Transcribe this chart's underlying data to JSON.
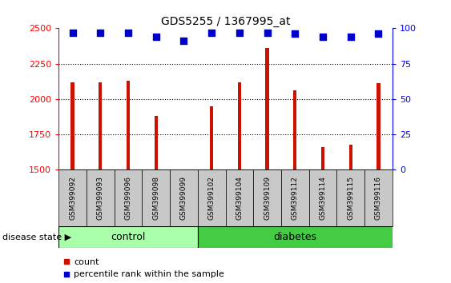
{
  "title": "GDS5255 / 1367995_at",
  "categories": [
    "GSM399092",
    "GSM399093",
    "GSM399096",
    "GSM399098",
    "GSM399099",
    "GSM399102",
    "GSM399104",
    "GSM399109",
    "GSM399112",
    "GSM399114",
    "GSM399115",
    "GSM399116"
  ],
  "bar_values": [
    2120,
    2118,
    2130,
    1880,
    1502,
    1950,
    2118,
    2360,
    2060,
    1660,
    1680,
    2115
  ],
  "percentile_values": [
    97,
    97,
    97,
    94,
    91,
    97,
    97,
    97,
    96,
    94,
    94,
    96
  ],
  "bar_color": "#CC1100",
  "dot_color": "#0000CC",
  "ylim_left": [
    1500,
    2500
  ],
  "ylim_right": [
    0,
    100
  ],
  "yticks_left": [
    1500,
    1750,
    2000,
    2250,
    2500
  ],
  "yticks_right": [
    0,
    25,
    50,
    75,
    100
  ],
  "group_labels": [
    "control",
    "diabetes"
  ],
  "ctrl_count": 5,
  "diab_count": 7,
  "control_color": "#AAFFAA",
  "diabetes_color": "#44CC44",
  "disease_state_label": "disease state",
  "legend_items": [
    "count",
    "percentile rank within the sample"
  ],
  "bar_width": 0.12,
  "dot_size": 35,
  "grid_linestyle": ":",
  "grid_linewidth": 0.8,
  "label_box_color": "#C8C8C8",
  "fig_width": 5.63,
  "fig_height": 3.54,
  "dpi": 100
}
